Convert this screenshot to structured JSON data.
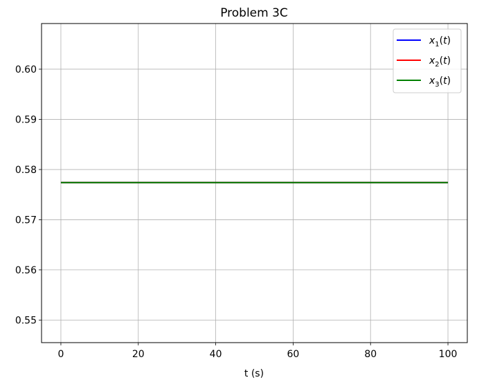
{
  "chart_data": {
    "type": "line",
    "title": "Problem 3C",
    "xlabel": "t (s)",
    "ylabel": "",
    "xlim": [
      -5,
      105
    ],
    "ylim": [
      0.5455,
      0.6091
    ],
    "xticks": [
      0,
      20,
      40,
      60,
      80,
      100
    ],
    "yticks": [
      0.55,
      0.56,
      0.57,
      0.58,
      0.59,
      0.6
    ],
    "xtick_labels": [
      "0",
      "20",
      "40",
      "60",
      "80",
      "100"
    ],
    "ytick_labels": [
      "0.55",
      "0.56",
      "0.57",
      "0.58",
      "0.59",
      "0.60"
    ],
    "grid": true,
    "legend_position": "top-right",
    "series": [
      {
        "name": "x1(t)",
        "legend_var": "x",
        "legend_sub": "1",
        "legend_arg": "(t)",
        "color": "#0000ff",
        "x": [
          0,
          100
        ],
        "y": [
          0.5774,
          0.5774
        ]
      },
      {
        "name": "x2(t)",
        "legend_var": "x",
        "legend_sub": "2",
        "legend_arg": "(t)",
        "color": "#ff0000",
        "x": [
          0,
          100
        ],
        "y": [
          0.5774,
          0.5774
        ]
      },
      {
        "name": "x3(t)",
        "legend_var": "x",
        "legend_sub": "3",
        "legend_arg": "(t)",
        "color": "#008000",
        "x": [
          0,
          100
        ],
        "y": [
          0.5774,
          0.5774
        ]
      }
    ]
  }
}
